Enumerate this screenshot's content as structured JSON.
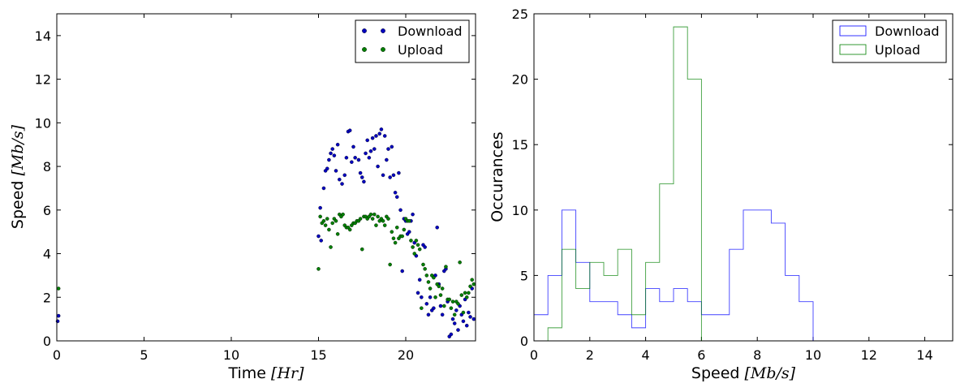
{
  "chart_data": [
    {
      "type": "scatter",
      "xlabel": "Time",
      "xlabel_unit": "[Hr]",
      "ylabel": "Speed",
      "ylabel_unit": "[Mb/s]",
      "xlim": [
        0,
        24
      ],
      "ylim": [
        0,
        15
      ],
      "xticks": [
        "0",
        "5",
        "10",
        "15",
        "20"
      ],
      "yticks": [
        "0",
        "2",
        "4",
        "6",
        "8",
        "10",
        "12",
        "14"
      ],
      "legend_position": "top-right",
      "series": [
        {
          "name": "Download",
          "color": "#0000bf",
          "points": [
            [
              0.05,
              0.9
            ],
            [
              0.1,
              1.15
            ],
            [
              15.0,
              4.8
            ],
            [
              15.1,
              6.1
            ],
            [
              15.15,
              4.6
            ],
            [
              15.3,
              7.0
            ],
            [
              15.4,
              7.8
            ],
            [
              15.5,
              7.9
            ],
            [
              15.6,
              8.3
            ],
            [
              15.7,
              8.6
            ],
            [
              15.8,
              8.8
            ],
            [
              15.9,
              8.5
            ],
            [
              16.0,
              7.8
            ],
            [
              16.1,
              9.0
            ],
            [
              16.2,
              7.4
            ],
            [
              16.35,
              7.2
            ],
            [
              16.5,
              7.6
            ],
            [
              16.6,
              8.4
            ],
            [
              16.7,
              9.6
            ],
            [
              16.8,
              9.65
            ],
            [
              16.9,
              8.2
            ],
            [
              17.0,
              8.9
            ],
            [
              17.1,
              8.4
            ],
            [
              17.3,
              8.3
            ],
            [
              17.4,
              7.7
            ],
            [
              17.5,
              7.5
            ],
            [
              17.6,
              7.3
            ],
            [
              17.7,
              8.6
            ],
            [
              17.8,
              9.2
            ],
            [
              17.9,
              8.4
            ],
            [
              18.0,
              8.7
            ],
            [
              18.1,
              9.3
            ],
            [
              18.2,
              8.8
            ],
            [
              18.3,
              9.4
            ],
            [
              18.4,
              8.0
            ],
            [
              18.5,
              9.5
            ],
            [
              18.6,
              9.7
            ],
            [
              18.7,
              7.6
            ],
            [
              18.8,
              9.4
            ],
            [
              18.9,
              8.3
            ],
            [
              19.0,
              8.8
            ],
            [
              19.1,
              7.5
            ],
            [
              19.2,
              8.9
            ],
            [
              19.3,
              7.6
            ],
            [
              19.4,
              6.8
            ],
            [
              19.5,
              6.6
            ],
            [
              19.6,
              7.7
            ],
            [
              19.7,
              6.0
            ],
            [
              19.8,
              3.2
            ],
            [
              19.9,
              5.6
            ],
            [
              20.0,
              5.5
            ],
            [
              20.1,
              4.9
            ],
            [
              20.2,
              5.0
            ],
            [
              20.3,
              5.5
            ],
            [
              20.4,
              5.8
            ],
            [
              20.5,
              4.5
            ],
            [
              20.6,
              3.9
            ],
            [
              20.7,
              2.2
            ],
            [
              20.8,
              2.8
            ],
            [
              20.9,
              2.0
            ],
            [
              21.0,
              4.4
            ],
            [
              21.1,
              4.3
            ],
            [
              21.2,
              1.7
            ],
            [
              21.3,
              1.2
            ],
            [
              21.4,
              2.0
            ],
            [
              21.5,
              1.4
            ],
            [
              21.6,
              1.5
            ],
            [
              21.7,
              3.0
            ],
            [
              21.8,
              5.2
            ],
            [
              21.9,
              2.6
            ],
            [
              22.0,
              1.6
            ],
            [
              22.1,
              1.2
            ],
            [
              22.2,
              3.2
            ],
            [
              22.3,
              3.3
            ],
            [
              22.4,
              1.8
            ],
            [
              22.5,
              0.2
            ],
            [
              22.6,
              0.3
            ],
            [
              22.7,
              1.0
            ],
            [
              22.8,
              0.8
            ],
            [
              22.9,
              1.4
            ],
            [
              23.0,
              0.5
            ],
            [
              23.1,
              1.6
            ],
            [
              23.2,
              1.2
            ],
            [
              23.3,
              0.9
            ],
            [
              23.4,
              1.9
            ],
            [
              23.5,
              0.7
            ],
            [
              23.6,
              1.3
            ],
            [
              23.7,
              1.1
            ],
            [
              23.8,
              2.4
            ],
            [
              23.9,
              1.0
            ]
          ]
        },
        {
          "name": "Upload",
          "color": "#007f00",
          "points": [
            [
              0.1,
              2.4
            ],
            [
              15.0,
              3.3
            ],
            [
              15.1,
              5.7
            ],
            [
              15.2,
              5.4
            ],
            [
              15.3,
              5.5
            ],
            [
              15.4,
              5.3
            ],
            [
              15.5,
              5.6
            ],
            [
              15.6,
              5.1
            ],
            [
              15.7,
              4.3
            ],
            [
              15.8,
              5.4
            ],
            [
              15.9,
              5.6
            ],
            [
              16.0,
              5.5
            ],
            [
              16.1,
              4.9
            ],
            [
              16.2,
              5.8
            ],
            [
              16.3,
              5.7
            ],
            [
              16.4,
              5.8
            ],
            [
              16.5,
              5.3
            ],
            [
              16.6,
              5.2
            ],
            [
              16.7,
              5.2
            ],
            [
              16.8,
              5.1
            ],
            [
              16.9,
              5.3
            ],
            [
              17.0,
              5.4
            ],
            [
              17.1,
              5.4
            ],
            [
              17.2,
              5.5
            ],
            [
              17.3,
              5.5
            ],
            [
              17.4,
              5.6
            ],
            [
              17.5,
              4.2
            ],
            [
              17.6,
              5.7
            ],
            [
              17.7,
              5.7
            ],
            [
              17.8,
              5.6
            ],
            [
              17.9,
              5.7
            ],
            [
              18.0,
              5.8
            ],
            [
              18.1,
              5.6
            ],
            [
              18.2,
              5.8
            ],
            [
              18.3,
              5.3
            ],
            [
              18.4,
              5.7
            ],
            [
              18.5,
              5.5
            ],
            [
              18.6,
              5.6
            ],
            [
              18.7,
              5.5
            ],
            [
              18.8,
              5.3
            ],
            [
              18.9,
              5.7
            ],
            [
              19.0,
              5.6
            ],
            [
              19.1,
              3.5
            ],
            [
              19.2,
              5.0
            ],
            [
              19.3,
              4.7
            ],
            [
              19.4,
              4.5
            ],
            [
              19.5,
              5.2
            ],
            [
              19.6,
              4.7
            ],
            [
              19.7,
              4.8
            ],
            [
              19.8,
              4.8
            ],
            [
              19.9,
              5.1
            ],
            [
              20.0,
              5.6
            ],
            [
              20.1,
              5.5
            ],
            [
              20.2,
              5.5
            ],
            [
              20.3,
              4.6
            ],
            [
              20.4,
              4.3
            ],
            [
              20.5,
              4.0
            ],
            [
              20.6,
              4.6
            ],
            [
              20.7,
              4.4
            ],
            [
              20.8,
              4.2
            ],
            [
              20.9,
              1.5
            ],
            [
              21.0,
              3.5
            ],
            [
              21.1,
              3.3
            ],
            [
              21.2,
              3.0
            ],
            [
              21.3,
              2.7
            ],
            [
              21.4,
              2.4
            ],
            [
              21.5,
              3.0
            ],
            [
              21.6,
              2.9
            ],
            [
              21.7,
              2.0
            ],
            [
              21.8,
              2.6
            ],
            [
              21.9,
              2.5
            ],
            [
              22.0,
              2.1
            ],
            [
              22.1,
              2.4
            ],
            [
              22.2,
              1.6
            ],
            [
              22.3,
              3.4
            ],
            [
              22.4,
              1.9
            ],
            [
              22.5,
              1.9
            ],
            [
              22.6,
              1.5
            ],
            [
              22.7,
              1.8
            ],
            [
              22.8,
              1.2
            ],
            [
              22.9,
              1.8
            ],
            [
              23.0,
              1.7
            ],
            [
              23.1,
              3.6
            ],
            [
              23.2,
              2.1
            ],
            [
              23.3,
              1.3
            ],
            [
              23.4,
              2.2
            ],
            [
              23.5,
              2.0
            ],
            [
              23.6,
              2.2
            ],
            [
              23.7,
              2.5
            ],
            [
              23.8,
              2.8
            ],
            [
              23.9,
              2.6
            ]
          ]
        }
      ]
    },
    {
      "type": "histogram",
      "xlabel": "Speed",
      "xlabel_unit": "[Mb/s]",
      "ylabel": "Occurances",
      "xlim": [
        0,
        15
      ],
      "ylim": [
        0,
        25
      ],
      "xticks": [
        "0",
        "2",
        "4",
        "6",
        "8",
        "10",
        "12",
        "14"
      ],
      "yticks": [
        "0",
        "5",
        "10",
        "15",
        "20",
        "25"
      ],
      "legend_position": "top-right",
      "bin_width": 0.5,
      "series": [
        {
          "name": "Download",
          "color": "#0000ff",
          "bin_start": 0,
          "counts": [
            2,
            5,
            10,
            6,
            3,
            3,
            2,
            1,
            4,
            3,
            4,
            3,
            2,
            2,
            7,
            10,
            10,
            9,
            5,
            3,
            0,
            0,
            0,
            0,
            0,
            0,
            0,
            0,
            0,
            0
          ]
        },
        {
          "name": "Upload",
          "color": "#008000",
          "bin_start": 0,
          "counts": [
            0,
            1,
            7,
            4,
            6,
            5,
            7,
            2,
            6,
            12,
            24,
            20,
            0,
            0,
            0,
            0,
            0,
            0,
            0,
            0,
            0,
            0,
            0,
            0,
            0,
            0,
            0,
            0,
            0,
            0
          ]
        }
      ]
    }
  ]
}
